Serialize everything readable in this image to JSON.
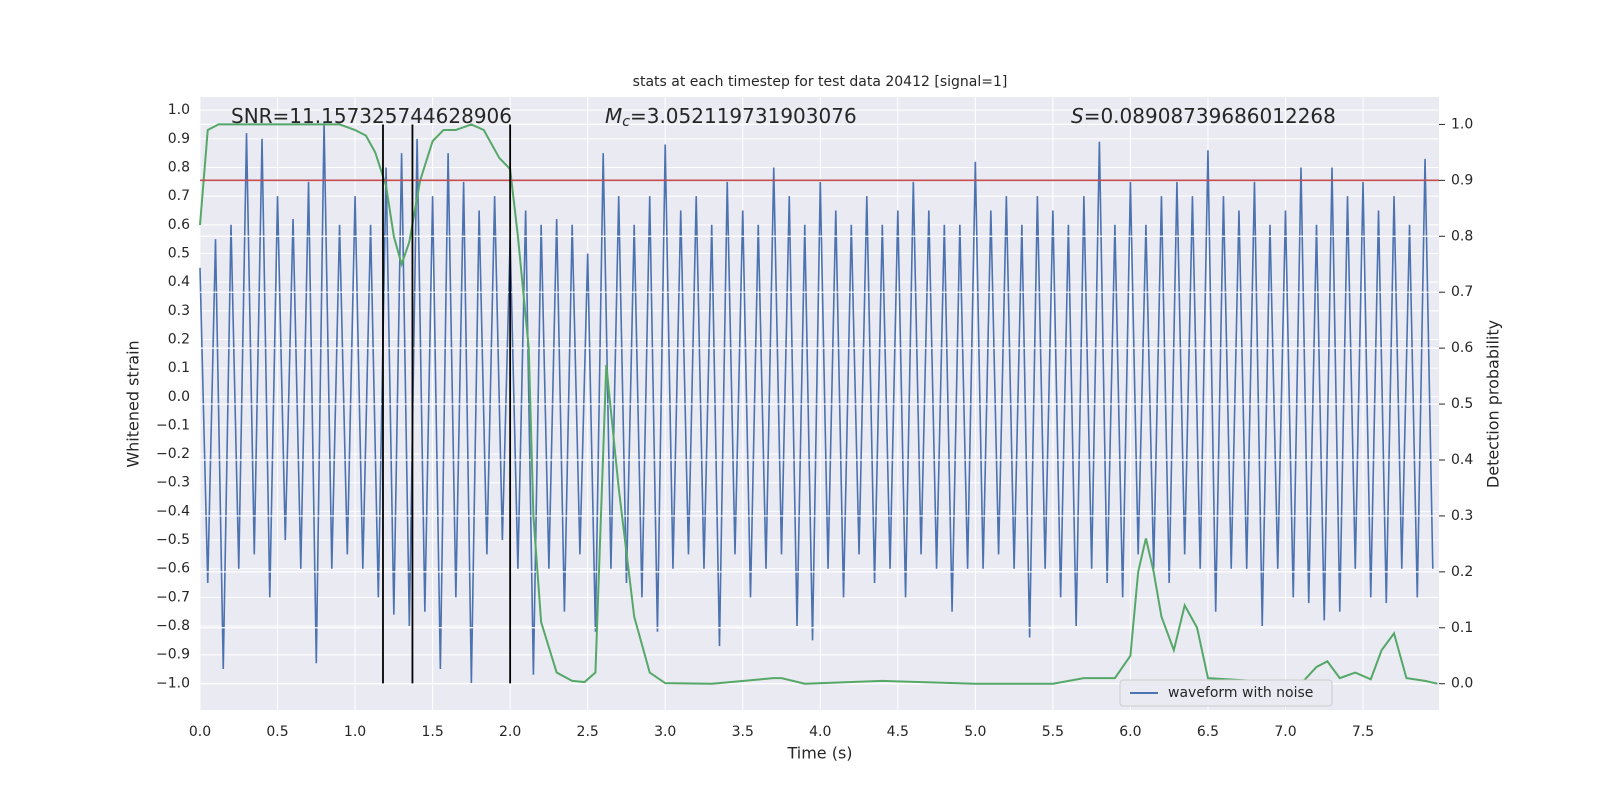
{
  "chart_data": {
    "type": "line",
    "title": "stats at each timestep for test data 20412 [signal=1]",
    "xlabel": "Time (s)",
    "ylabel": "Whitened strain",
    "y2label": "Detection probability",
    "xlim": [
      0,
      7.99
    ],
    "ylim": [
      -1.093,
      1.046
    ],
    "y2lim": [
      -0.047,
      1.049
    ],
    "xticks": [
      {
        "value": 0,
        "label": "0.0"
      },
      0.5,
      {
        "value": 1,
        "label": "1.0"
      },
      1.5,
      {
        "value": 2,
        "label": "2.0"
      },
      2.5,
      {
        "value": 3,
        "label": "3.0"
      },
      3.5,
      {
        "value": 4,
        "label": "4.0"
      },
      4.5,
      {
        "value": 5,
        "label": "5.0"
      },
      5.5,
      {
        "value": 6,
        "label": "6.0"
      },
      6.5,
      {
        "value": 7,
        "label": "7.0"
      },
      7.5
    ],
    "yticks": [
      {
        "value": -1,
        "label": "−1.0"
      },
      {
        "value": -0.9,
        "label": "−0.9"
      },
      {
        "value": -0.8,
        "label": "−0.8"
      },
      {
        "value": -0.7,
        "label": "−0.7"
      },
      {
        "value": -0.6,
        "label": "−0.6"
      },
      {
        "value": -0.5,
        "label": "−0.5"
      },
      {
        "value": -0.4,
        "label": "−0.4"
      },
      {
        "value": -0.3,
        "label": "−0.3"
      },
      {
        "value": -0.2,
        "label": "−0.2"
      },
      {
        "value": -0.1,
        "label": "−0.1"
      },
      {
        "value": 0,
        "label": "0.0"
      },
      0.1,
      0.2,
      0.3,
      0.4,
      0.5,
      0.6,
      0.7,
      0.8,
      0.9,
      {
        "value": 1,
        "label": "1.0"
      }
    ],
    "y2ticks": [
      {
        "value": 0,
        "label": "0.0"
      },
      0.1,
      0.2,
      0.3,
      0.4,
      0.5,
      0.6,
      0.7,
      0.8,
      0.9,
      {
        "value": 1,
        "label": "1.0"
      }
    ],
    "grid": true,
    "legend": "lower right",
    "annotations": [
      {
        "text": "SNR=11.157325744628906"
      },
      {
        "symbol": "M",
        "subscript": "c",
        "text": "=3.052119731903076"
      },
      {
        "symbol": "S",
        "text": "=0.08908739686012268"
      }
    ],
    "series": [
      {
        "name": "waveform with noise",
        "color": "#4c72b0",
        "x": [
          0,
          0.05,
          0.1,
          0.15,
          0.2,
          0.25,
          0.3,
          0.35,
          0.4,
          0.45,
          0.5,
          0.55,
          0.6,
          0.65,
          0.7,
          0.75,
          0.8,
          0.85,
          0.9,
          0.95,
          1,
          1.05,
          1.1,
          1.15,
          1.2,
          1.25,
          1.3,
          1.35,
          1.4,
          1.45,
          1.5,
          1.55,
          1.6,
          1.65,
          1.7,
          1.75,
          1.8,
          1.85,
          1.9,
          1.95,
          2,
          2.05,
          2.1,
          2.15,
          2.2,
          2.25,
          2.3,
          2.35,
          2.4,
          2.45,
          2.5,
          2.55,
          2.6,
          2.65,
          2.7,
          2.75,
          2.8,
          2.85,
          2.9,
          2.95,
          3,
          3.05,
          3.1,
          3.15,
          3.2,
          3.25,
          3.3,
          3.35,
          3.4,
          3.45,
          3.5,
          3.55,
          3.6,
          3.65,
          3.7,
          3.75,
          3.8,
          3.85,
          3.9,
          3.95,
          4,
          4.05,
          4.1,
          4.15,
          4.2,
          4.25,
          4.3,
          4.35,
          4.4,
          4.45,
          4.5,
          4.55,
          4.6,
          4.65,
          4.7,
          4.75,
          4.8,
          4.85,
          4.9,
          4.95,
          5,
          5.05,
          5.1,
          5.15,
          5.2,
          5.25,
          5.3,
          5.35,
          5.4,
          5.45,
          5.5,
          5.55,
          5.6,
          5.65,
          5.7,
          5.75,
          5.8,
          5.85,
          5.9,
          5.95,
          6,
          6.05,
          6.1,
          6.15,
          6.2,
          6.25,
          6.3,
          6.35,
          6.4,
          6.45,
          6.5,
          6.55,
          6.6,
          6.65,
          6.7,
          6.75,
          6.8,
          6.85,
          6.9,
          6.95,
          7,
          7.05,
          7.1,
          7.15,
          7.2,
          7.25,
          7.3,
          7.35,
          7.4,
          7.45,
          7.5,
          7.55,
          7.6,
          7.65,
          7.7,
          7.75,
          7.8,
          7.85,
          7.9,
          7.95
        ],
        "values": [
          0.45,
          -0.65,
          0.55,
          -0.95,
          0.6,
          -0.6,
          0.92,
          -0.55,
          0.9,
          -0.7,
          0.7,
          -0.5,
          0.62,
          -0.6,
          0.75,
          -0.93,
          0.96,
          -0.6,
          0.6,
          -0.55,
          0.7,
          -0.6,
          0.6,
          -0.7,
          0.8,
          -0.76,
          0.85,
          -0.8,
          0.9,
          -0.75,
          0.7,
          -0.95,
          0.85,
          -0.7,
          0.75,
          -1.0,
          0.65,
          -0.55,
          0.7,
          -0.5,
          0.55,
          -0.6,
          0.65,
          -0.97,
          0.6,
          -0.6,
          0.62,
          -0.75,
          0.6,
          -0.55,
          0.5,
          -0.82,
          0.85,
          -0.6,
          0.7,
          -0.65,
          0.6,
          -0.7,
          0.7,
          -0.82,
          0.88,
          -0.6,
          0.65,
          -0.55,
          0.7,
          -0.6,
          0.6,
          -0.87,
          0.75,
          -0.55,
          0.65,
          -0.7,
          0.6,
          -0.6,
          0.8,
          -0.55,
          0.7,
          -0.8,
          0.6,
          -0.85,
          0.75,
          -0.6,
          0.65,
          -0.7,
          0.6,
          -0.55,
          0.7,
          -0.65,
          0.6,
          -0.6,
          0.65,
          -0.7,
          0.75,
          -0.55,
          0.65,
          -0.6,
          0.6,
          -0.75,
          0.6,
          -0.6,
          0.82,
          -0.6,
          0.65,
          -0.55,
          0.7,
          -0.6,
          0.6,
          -0.84,
          0.7,
          -0.6,
          0.65,
          -0.7,
          0.6,
          -0.8,
          0.7,
          -0.6,
          0.89,
          -0.65,
          0.6,
          -0.7,
          0.75,
          -0.55,
          0.6,
          -0.6,
          0.7,
          -0.65,
          0.75,
          -0.55,
          0.7,
          -0.6,
          0.86,
          -0.75,
          0.7,
          -0.6,
          0.65,
          -0.6,
          0.75,
          -0.8,
          0.6,
          -0.6,
          0.65,
          -0.7,
          0.8,
          -0.72,
          0.6,
          -0.78,
          0.8,
          -0.75,
          0.7,
          -0.6,
          0.75,
          -0.7,
          0.65,
          -0.72,
          0.7,
          -0.6,
          0.6,
          -0.7,
          0.83,
          -0.6
        ]
      },
      {
        "color": "#55a868",
        "axis": "y2",
        "x": [
          0,
          0.05,
          0.12,
          0.5,
          0.9,
          1,
          1.07,
          1.13,
          1.2,
          1.25,
          1.3,
          1.35,
          1.42,
          1.5,
          1.57,
          1.65,
          1.75,
          1.83,
          1.93,
          2,
          2.05,
          2.12,
          2.15,
          2.2,
          2.3,
          2.4,
          2.48,
          2.55,
          2.62,
          2.7,
          2.8,
          2.9,
          3,
          3.3,
          3.7,
          3.75,
          3.9,
          4.4,
          5,
          5.5,
          5.7,
          5.9,
          6,
          6.05,
          6.1,
          6.15,
          6.2,
          6.28,
          6.35,
          6.43,
          6.5,
          7.1,
          7.2,
          7.27,
          7.35,
          7.45,
          7.55,
          7.62,
          7.7,
          7.78,
          7.9,
          7.98
        ],
        "values": [
          0.82,
          0.99,
          1,
          1,
          1,
          0.99,
          0.98,
          0.95,
          0.89,
          0.8,
          0.75,
          0.79,
          0.9,
          0.97,
          0.99,
          0.99,
          1,
          0.99,
          0.94,
          0.92,
          0.8,
          0.6,
          0.3,
          0.11,
          0.02,
          0.005,
          0.003,
          0.02,
          0.57,
          0.35,
          0.12,
          0.02,
          0.001,
          0,
          0.01,
          0.01,
          0,
          0.005,
          0,
          0,
          0.01,
          0.01,
          0.05,
          0.2,
          0.26,
          0.2,
          0.12,
          0.06,
          0.14,
          0.1,
          0.01,
          0,
          0.03,
          0.04,
          0.01,
          0.02,
          0.008,
          0.06,
          0.09,
          0.01,
          0.005,
          0
        ]
      }
    ],
    "hlines": [
      {
        "y": 0.9,
        "axis": "y2",
        "color": "#c44e52"
      }
    ],
    "vlines": {
      "x": [
        1.18,
        1.37,
        2.0
      ],
      "ymin": -1.0,
      "ymax": 0.95,
      "color": "#000000"
    }
  }
}
